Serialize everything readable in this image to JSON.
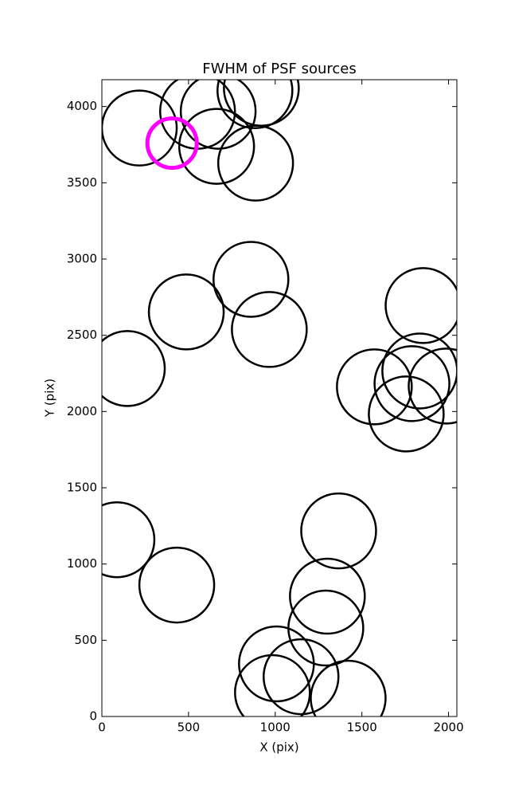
{
  "chart_data": {
    "type": "scatter",
    "title": "FWHM of PSF sources",
    "x_label": "X (pix)",
    "y_label": "Y (pix)",
    "x": [
      216,
      552,
      671,
      883,
      920,
      662,
      887,
      860,
      487,
      966,
      147,
      1853,
      1572,
      1834,
      1789,
      1986,
      1756,
      87,
      432,
      1366,
      1301,
      1292,
      1007,
      984,
      1149,
      1421
    ],
    "y": [
      3859,
      3969,
      3969,
      4104,
      4120,
      3739,
      3629,
      2867,
      2653,
      2538,
      2282,
      2695,
      2162,
      2266,
      2183,
      2167,
      1984,
      1159,
      862,
      1217,
      789,
      580,
      345,
      157,
      261,
      120
    ],
    "sizes": [
      47,
      47,
      47,
      47,
      47,
      47,
      47,
      47,
      47,
      47,
      47,
      47,
      47,
      47,
      47,
      47,
      47,
      47,
      47,
      47,
      47,
      47,
      47,
      47,
      47,
      47
    ],
    "color": "#000000",
    "highlight": {
      "x": 405,
      "y": 3760,
      "size": 31,
      "color": "#ff00ff"
    },
    "xlim": [
      0,
      2048
    ],
    "ylim": [
      0,
      4176
    ],
    "xticks": [
      0,
      500,
      1000,
      1500,
      2000
    ],
    "yticks": [
      0,
      500,
      1000,
      1500,
      2000,
      2500,
      3000,
      3500,
      4000
    ]
  }
}
